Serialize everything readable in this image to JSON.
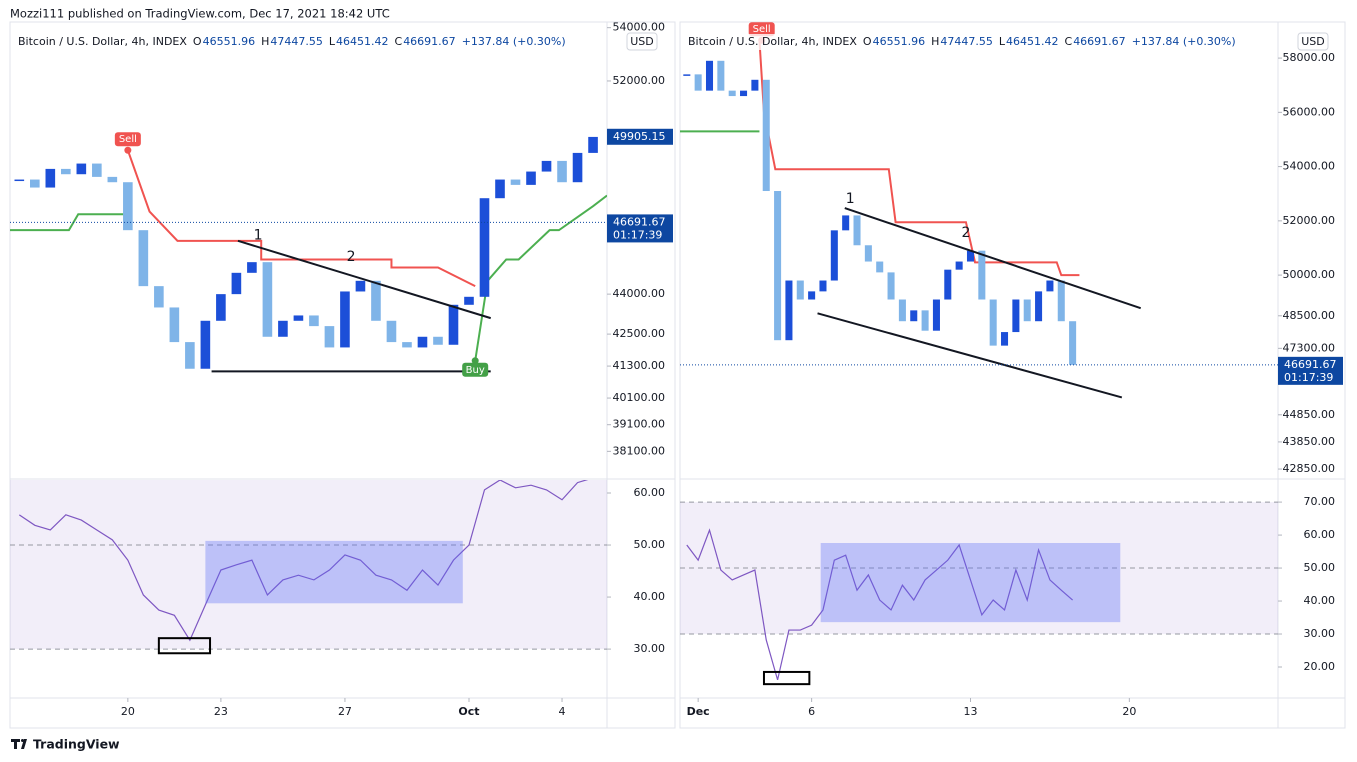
{
  "header": {
    "text": "Mozzi111 published on TradingView.com, Dec 17, 2021 18:42 UTC"
  },
  "footer": {
    "text": "TradingView"
  },
  "chart_data": [
    {
      "type": "candlestick",
      "symbol": "Bitcoin / U.S. Dollar, 4h, INDEX",
      "ohlc": [
        {
          "label": "O",
          "value": "46551.96"
        },
        {
          "label": "H",
          "value": "47447.55"
        },
        {
          "label": "L",
          "value": "46451.42"
        },
        {
          "label": "C",
          "value": "46691.67"
        }
      ],
      "change": "+137.84 (+0.30%)",
      "currency": "USD",
      "up_color": "#1c4fd8",
      "down_color": "#7fb4e8",
      "x": [
        16.5,
        17,
        17.5,
        18,
        18.5,
        19,
        19.5,
        20,
        20.5,
        21,
        21.5,
        22,
        22.5,
        23,
        23.5,
        24,
        24.5,
        25,
        25.5,
        26,
        26.5,
        27,
        27.5,
        28,
        28.5,
        29,
        29.5,
        30,
        30.5,
        31,
        31.5,
        32,
        32.5,
        33,
        33.5,
        34,
        34.5,
        35
      ],
      "values": [
        48300,
        48000,
        48700,
        48500,
        48900,
        48400,
        48200,
        46400,
        44300,
        43500,
        42200,
        41200,
        43000,
        44000,
        44800,
        45200,
        42400,
        43000,
        43200,
        42800,
        42000,
        44100,
        44500,
        43000,
        42200,
        42000,
        42400,
        42100,
        43600,
        43900,
        47600,
        48300,
        48100,
        48600,
        49000,
        48200,
        49300,
        49900
      ],
      "xlim": [
        16.2,
        35.45
      ],
      "xticks": [
        20,
        23,
        27,
        {
          "value": 31,
          "label": "Oct"
        },
        {
          "value": 34,
          "label": "4"
        }
      ],
      "ylim": [
        37100,
        54100
      ],
      "yticks": [
        {
          "value": 54000,
          "label": "54000.00"
        },
        {
          "value": 52000,
          "label": "52000.00"
        },
        {
          "value": 44000,
          "label": "44000.00"
        },
        {
          "value": 42500,
          "label": "42500.00"
        },
        {
          "value": 41300,
          "label": "41300.00"
        },
        {
          "value": 40100,
          "label": "40100.00"
        },
        {
          "value": 39100,
          "label": "39100.00"
        },
        {
          "value": 38100,
          "label": "38100.00"
        }
      ],
      "price_labels": [
        {
          "value": 49905.15,
          "color": "#0d47a1"
        },
        {
          "value": 46691.67,
          "countdown": "01:17:39",
          "color": "#0d47a1",
          "line": true
        }
      ],
      "supertrend": [
        {
          "color": "#4caf50",
          "x": [
            16.2,
            18.1,
            18.4,
            20
          ],
          "values": [
            46400,
            46400,
            47000,
            47000
          ]
        },
        {
          "color": "#f05350",
          "x": [
            20,
            20.7,
            21.6,
            24.3,
            24.3,
            28.5,
            28.5,
            30,
            31.2
          ],
          "values": [
            49400,
            47100,
            46000,
            46000,
            45300,
            45300,
            45000,
            45000,
            44300
          ]
        },
        {
          "color": "#4caf50",
          "x": [
            31.2,
            31.6,
            32.2,
            32.6,
            33.6,
            33.9,
            35,
            35.45
          ],
          "values": [
            41500,
            44500,
            45300,
            45300,
            46400,
            46400,
            47300,
            47700
          ]
        }
      ],
      "trendlines": [
        {
          "x": [
            23.55,
            31.7
          ],
          "values": [
            46000,
            43100
          ]
        },
        {
          "x": [
            22.7,
            31.7
          ],
          "values": [
            41100,
            41100
          ]
        }
      ],
      "annotations": [
        {
          "text": "1",
          "x": 24.2,
          "y": 46200,
          "color": "#f05350"
        },
        {
          "text": "2",
          "x": 27.2,
          "y": 45400,
          "color": "#f05350"
        }
      ],
      "signals": [
        {
          "text": "Sell",
          "x": 20,
          "y": 49400,
          "position": "above",
          "color": "#f05350"
        },
        {
          "text": "Buy",
          "x": 31.2,
          "y": 41500,
          "position": "below",
          "color": "#43a047"
        }
      ],
      "rsi": {
        "color": "#7e57c2",
        "x": [
          16.5,
          17,
          17.5,
          18,
          18.5,
          19,
          19.5,
          20,
          20.5,
          21,
          21.5,
          22,
          22.5,
          23,
          23.5,
          24,
          24.5,
          25,
          25.5,
          26,
          26.5,
          27,
          27.5,
          28,
          28.5,
          29,
          29.5,
          30,
          30.5,
          31,
          31.5,
          32,
          32.5,
          33,
          33.5,
          34,
          34.5,
          35
        ],
        "values": [
          55.8,
          53.8,
          52.9,
          55.8,
          54.8,
          52.9,
          51,
          47.1,
          40.4,
          37.5,
          36.5,
          31.7,
          38.5,
          45.2,
          46.2,
          47.1,
          40.4,
          43.3,
          44.2,
          43.3,
          45.2,
          48.1,
          47.1,
          44.2,
          43.3,
          41.3,
          45.2,
          42.3,
          47.1,
          50,
          60.6,
          62.5,
          61,
          61.5,
          60.6,
          58.7,
          62,
          62.9
        ],
        "ylim": [
          20.6,
          62.5
        ],
        "yticks": [
          {
            "value": 60,
            "label": "60.00"
          },
          {
            "value": 50,
            "label": "50.00"
          },
          {
            "value": 40,
            "label": "40.00"
          },
          {
            "value": 30,
            "label": "30.00"
          }
        ],
        "levels": [
          70,
          50,
          30
        ],
        "band": [
          30,
          70
        ],
        "boxes": [
          {
            "x": [
              22.5,
              30.8
            ],
            "values": [
              50.8,
              38.8
            ],
            "color": "#5b6cf5",
            "filled": true
          },
          {
            "x": [
              21,
              22.65
            ],
            "values": [
              32.1,
              29.2
            ],
            "color": "#000000",
            "filled": false
          }
        ]
      }
    },
    {
      "type": "candlestick",
      "symbol": "Bitcoin / U.S. Dollar, 4h, INDEX",
      "ohlc": [
        {
          "label": "O",
          "value": "46551.96"
        },
        {
          "label": "H",
          "value": "47447.55"
        },
        {
          "label": "L",
          "value": "46451.42"
        },
        {
          "label": "C",
          "value": "46691.67"
        }
      ],
      "change": "+137.84 (+0.30%)",
      "currency": "USD",
      "up_color": "#1c4fd8",
      "down_color": "#7fb4e8",
      "x": [
        0.5,
        1,
        1.5,
        2,
        2.5,
        3,
        3.5,
        4,
        4.5,
        5,
        5.5,
        6,
        6.5,
        7,
        7.5,
        8,
        8.5,
        9,
        9.5,
        10,
        10.5,
        11,
        11.5,
        12,
        12.5,
        13,
        13.5,
        14,
        14.5,
        15,
        15.5,
        16,
        16.5,
        17,
        17.5
      ],
      "values": [
        57400,
        56800,
        57900,
        56800,
        56600,
        56800,
        57200,
        53100,
        47600,
        49800,
        49100,
        49400,
        49800,
        51650,
        52200,
        51100,
        50500,
        50100,
        49100,
        48300,
        48700,
        47950,
        49100,
        50200,
        50500,
        50900,
        49100,
        47400,
        47900,
        49100,
        48300,
        49400,
        49800,
        48300,
        46691.67
      ],
      "xlim": [
        0.2,
        26.55
      ],
      "xticks": [
        {
          "value": 1,
          "label": "Dec"
        },
        6,
        13,
        20
      ],
      "ylim": [
        42520,
        59220
      ],
      "yticks": [
        {
          "value": 58000,
          "label": "58000.00"
        },
        {
          "value": 56000,
          "label": "56000.00"
        },
        {
          "value": 54000,
          "label": "54000.00"
        },
        {
          "value": 52000,
          "label": "52000.00"
        },
        {
          "value": 50000,
          "label": "50000.00"
        },
        {
          "value": 48500,
          "label": "48500.00"
        },
        {
          "value": 47300,
          "label": "47300.00"
        },
        {
          "value": 44850,
          "label": "44850.00"
        },
        {
          "value": 43850,
          "label": "43850.00"
        },
        {
          "value": 42850,
          "label": "42850.00"
        }
      ],
      "price_labels": [
        {
          "value": 46691.67,
          "countdown": "01:17:39",
          "color": "#0d47a1",
          "line": true
        }
      ],
      "supertrend": [
        {
          "color": "#4caf50",
          "x": [
            0.2,
            3.7
          ],
          "values": [
            55300,
            55300
          ]
        },
        {
          "color": "#f05350",
          "x": [
            3.7,
            3.9,
            4.4,
            9.4,
            9.7,
            12.8,
            13.2,
            16.8,
            17,
            17.8
          ],
          "values": [
            58660,
            56000,
            53900,
            53900,
            51950,
            51950,
            50470,
            50470,
            50000,
            50000
          ]
        }
      ],
      "trendlines": [
        {
          "x": [
            7.46,
            20.5
          ],
          "values": [
            52470,
            48780
          ]
        },
        {
          "x": [
            6.26,
            19.67
          ],
          "values": [
            48590,
            45490
          ]
        }
      ],
      "annotations": [
        {
          "text": "1",
          "x": 7.7,
          "y": 52800,
          "color": "#f05350"
        },
        {
          "text": "2",
          "x": 12.8,
          "y": 51550,
          "color": "#f05350"
        }
      ],
      "signals": [
        {
          "text": "Sell",
          "x": 3.8,
          "y": 58660,
          "position": "above",
          "color": "#f05350"
        }
      ],
      "rsi": {
        "color": "#7e57c2",
        "x": [
          0.5,
          1,
          1.5,
          2,
          2.5,
          3,
          3.5,
          4,
          4.5,
          5,
          5.5,
          6,
          6.5,
          7,
          7.5,
          8,
          8.5,
          9,
          9.5,
          10,
          10.5,
          11,
          11.5,
          12,
          12.5,
          13,
          13.5,
          14,
          14.5,
          15,
          15.5,
          16,
          16.5,
          17,
          17.5
        ],
        "values": [
          57,
          52.4,
          61.5,
          49.4,
          46.4,
          47.9,
          49.4,
          28.2,
          16.1,
          31.2,
          31.2,
          32.7,
          37.3,
          52.4,
          53.9,
          43.3,
          47.9,
          40.3,
          37.3,
          44.8,
          40.3,
          46.4,
          49.4,
          52.4,
          57,
          46.4,
          35.8,
          40.3,
          37.3,
          49.4,
          40.3,
          55.5,
          46.4,
          43.3,
          40.3
        ],
        "ylim": [
          10.6,
          76.7
        ],
        "yticks": [
          {
            "value": 70,
            "label": "70.00"
          },
          {
            "value": 60,
            "label": "60.00"
          },
          {
            "value": 50,
            "label": "50.00"
          },
          {
            "value": 40,
            "label": "40.00"
          },
          {
            "value": 30,
            "label": "30.00"
          },
          {
            "value": 20,
            "label": "20.00"
          }
        ],
        "levels": [
          70,
          50,
          30
        ],
        "band": [
          30,
          70
        ],
        "boxes": [
          {
            "x": [
              6.4,
              19.6
            ],
            "values": [
              57.6,
              33.6
            ],
            "color": "#5b6cf5",
            "filled": true
          },
          {
            "x": [
              3.9,
              5.9
            ],
            "values": [
              18.5,
              14.8
            ],
            "color": "#000000",
            "filled": false
          }
        ]
      }
    }
  ]
}
